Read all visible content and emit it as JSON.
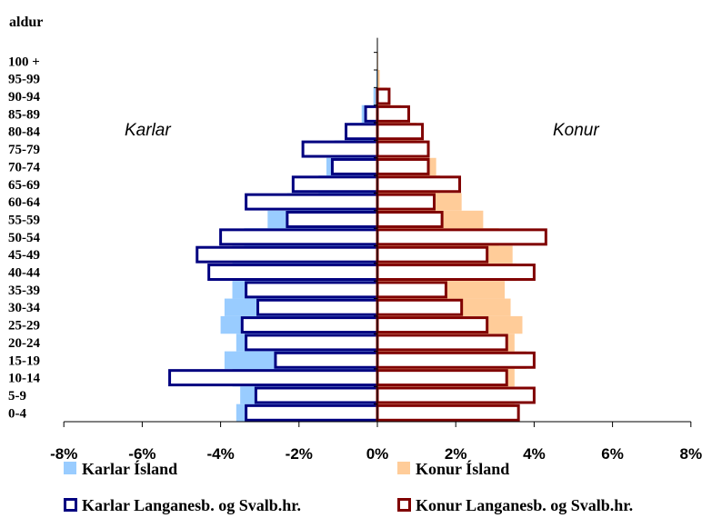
{
  "chart_data": {
    "type": "bar",
    "orientation": "horizontal",
    "title": "aldur",
    "categories": [
      "0-4",
      "5-9",
      "10-14",
      "15-19",
      "20-24",
      "25-29",
      "30-34",
      "35-39",
      "40-44",
      "45-49",
      "50-54",
      "55-59",
      "60-64",
      "65-69",
      "70-74",
      "75-79",
      "80-84",
      "85-89",
      "90-94",
      "95-99",
      "100 +"
    ],
    "series": [
      {
        "name": "Karlar Ísland",
        "side": "left",
        "style": "filled",
        "color": "#99CCFF",
        "values": [
          3.6,
          3.5,
          3.7,
          3.9,
          3.6,
          4.0,
          3.9,
          3.7,
          3.7,
          3.7,
          3.4,
          2.8,
          2.3,
          1.5,
          1.3,
          1.1,
          0.7,
          0.4,
          0.1,
          0.03,
          0.01
        ]
      },
      {
        "name": "Konur Ísland",
        "side": "right",
        "style": "filled",
        "color": "#FFCC99",
        "values": [
          3.5,
          3.35,
          3.5,
          3.8,
          3.5,
          3.7,
          3.4,
          3.25,
          3.55,
          3.45,
          3.1,
          2.7,
          2.15,
          1.6,
          1.5,
          1.2,
          1.0,
          0.6,
          0.25,
          0.06,
          0.02
        ]
      },
      {
        "name": "Karlar Langanesb. og Svalb.hr.",
        "side": "left",
        "style": "outline",
        "color": "#000080",
        "values": [
          3.35,
          3.1,
          5.3,
          2.6,
          3.35,
          3.45,
          3.05,
          3.35,
          4.3,
          4.6,
          4.0,
          2.3,
          3.35,
          2.15,
          1.15,
          1.9,
          0.8,
          0.3,
          0,
          0,
          0
        ]
      },
      {
        "name": "Konur Langanesb. og Svalb.hr.",
        "side": "right",
        "style": "outline",
        "color": "#800000",
        "values": [
          3.6,
          4.0,
          3.3,
          4.0,
          3.3,
          2.8,
          2.15,
          1.75,
          4.0,
          2.8,
          4.3,
          1.65,
          1.45,
          2.1,
          1.3,
          1.3,
          1.15,
          0.8,
          0.3,
          0,
          0
        ]
      }
    ],
    "xlim": [
      -8,
      8
    ],
    "xticks": [
      "-8%",
      "-6%",
      "-4%",
      "-2%",
      "0%",
      "2%",
      "4%",
      "6%",
      "8%"
    ],
    "side_labels": {
      "left": "Karlar",
      "right": "Konur"
    },
    "grid": false,
    "legend_position": "bottom"
  }
}
